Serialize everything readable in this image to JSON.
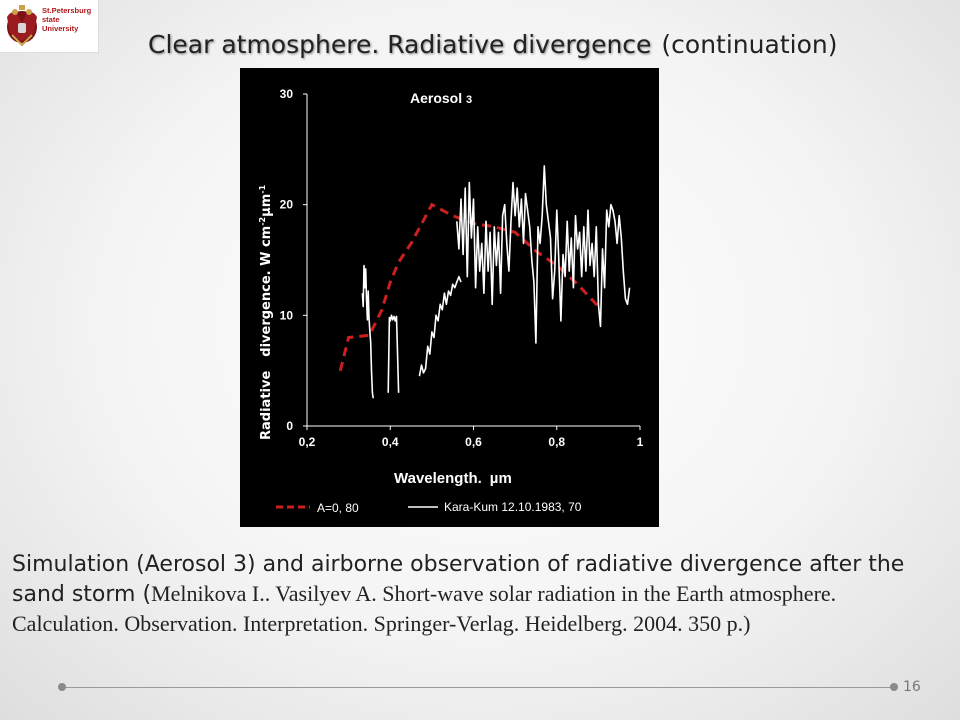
{
  "logo": {
    "line1": "St.Petersburg",
    "line2": "state",
    "line3": "University",
    "icon": "double-headed-eagle-emblem"
  },
  "slide": {
    "title": "Clear atmosphere. Radiative divergence",
    "title_cont": "(continuation)",
    "caption_sans": "Simulation (Aerosol 3) and airborne observation of radiative divergence after the sand storm (",
    "caption_serif": "Melnikova I.. Vasilyev A. Short-wave solar radiation in the Earth atmosphere. Calculation. Observation. Interpretation. Springer-Verlag. Heidelberg. 2004. 350 p.)",
    "page_number": "16"
  },
  "chart_data": {
    "type": "line",
    "title": "Aerosol",
    "title_sub": "3",
    "xlabel": "Wavelength.",
    "xlabel_unit": "µm",
    "ylabel_part1": "Radiative",
    "ylabel_part2": "divergence. W cm",
    "ylabel_exp1": "-2",
    "ylabel_unit": "µm",
    "ylabel_exp2": "-1",
    "xlim": [
      0.2,
      1.0
    ],
    "ylim": [
      0,
      30
    ],
    "x_ticks": [
      0.2,
      0.4,
      0.6,
      0.8,
      1.0
    ],
    "x_tick_labels": [
      "0,2",
      "0,4",
      "0,6",
      "0,8",
      "1"
    ],
    "y_ticks": [
      0,
      10,
      20,
      30
    ],
    "y_tick_labels": [
      "0",
      "10",
      "20",
      "30"
    ],
    "grid": false,
    "background": "#000000",
    "legend_position": "bottom",
    "series": [
      {
        "name": "A=0, 80",
        "style": "dashed",
        "color": "#cc1f1f",
        "x": [
          0.28,
          0.3,
          0.35,
          0.38,
          0.4,
          0.42,
          0.45,
          0.5,
          0.55,
          0.6,
          0.65,
          0.7,
          0.75,
          0.8,
          0.85,
          0.9
        ],
        "y": [
          5.0,
          8.0,
          8.2,
          10.5,
          13.0,
          14.8,
          16.5,
          20.0,
          19.0,
          18.3,
          18.0,
          17.5,
          15.8,
          14.5,
          12.8,
          10.8
        ]
      },
      {
        "name": "Kara-Kum 12.10.1983, 70",
        "style": "solid",
        "color": "#ffffff",
        "segments": [
          {
            "x": [
              0.333,
              0.335,
              0.337,
              0.339,
              0.341,
              0.343,
              0.345,
              0.347,
              0.349,
              0.351,
              0.353,
              0.355,
              0.357,
              0.359
            ],
            "y": [
              12.0,
              10.8,
              14.5,
              12.5,
              14.2,
              11.5,
              9.6,
              12.2,
              9.8,
              8.5,
              7.5,
              5.0,
              3.0,
              2.5
            ]
          },
          {
            "x": [
              0.395,
              0.398,
              0.4,
              0.403,
              0.406,
              0.409,
              0.412,
              0.415,
              0.418,
              0.42
            ],
            "y": [
              3.0,
              9.8,
              9.5,
              10.0,
              9.6,
              9.9,
              9.5,
              9.9,
              6.0,
              3.0
            ]
          },
          {
            "x": [
              0.47,
              0.475,
              0.48,
              0.485,
              0.49,
              0.495,
              0.5,
              0.505,
              0.51,
              0.515,
              0.52,
              0.525,
              0.53,
              0.535,
              0.54,
              0.545,
              0.55,
              0.555,
              0.56,
              0.565,
              0.57
            ],
            "y": [
              4.5,
              5.5,
              4.8,
              5.2,
              7.2,
              6.5,
              8.5,
              8.0,
              10.0,
              9.5,
              11.0,
              10.5,
              12.0,
              11.0,
              12.2,
              11.8,
              12.8,
              12.5,
              13.0,
              13.5,
              13.0
            ]
          },
          {
            "x": [
              0.56,
              0.565,
              0.57,
              0.575,
              0.58,
              0.585,
              0.59,
              0.595,
              0.6,
              0.605,
              0.61,
              0.615,
              0.62,
              0.625,
              0.63,
              0.635,
              0.64,
              0.645,
              0.65,
              0.655,
              0.66,
              0.665,
              0.67,
              0.675,
              0.68,
              0.685,
              0.69,
              0.695,
              0.7,
              0.705,
              0.71,
              0.715,
              0.72,
              0.725,
              0.73,
              0.735,
              0.74,
              0.745,
              0.75,
              0.755,
              0.76,
              0.765,
              0.77,
              0.775,
              0.78,
              0.785,
              0.79,
              0.795,
              0.8,
              0.805,
              0.81,
              0.815,
              0.82,
              0.825,
              0.83,
              0.835,
              0.84,
              0.845,
              0.85,
              0.855,
              0.86,
              0.865,
              0.87,
              0.875,
              0.88,
              0.885,
              0.89,
              0.895,
              0.9,
              0.905,
              0.91,
              0.915,
              0.92,
              0.925,
              0.93,
              0.935,
              0.94,
              0.945,
              0.95,
              0.955,
              0.96,
              0.965,
              0.97,
              0.975
            ],
            "y": [
              18.5,
              16.0,
              20.5,
              15.5,
              21.5,
              13.5,
              22.0,
              17.0,
              20.5,
              12.5,
              18.0,
              14.0,
              16.5,
              12.0,
              18.5,
              14.0,
              17.5,
              11.0,
              18.0,
              14.5,
              17.5,
              12.0,
              19.0,
              20.0,
              16.5,
              14.0,
              18.5,
              22.0,
              19.0,
              21.5,
              18.0,
              20.5,
              16.5,
              21.0,
              19.5,
              18.0,
              15.0,
              13.0,
              7.5,
              18.0,
              16.5,
              19.0,
              23.5,
              20.0,
              18.5,
              17.0,
              11.5,
              14.0,
              19.5,
              15.0,
              9.5,
              15.5,
              13.5,
              18.5,
              14.0,
              17.0,
              12.5,
              19.0,
              16.0,
              17.5,
              13.5,
              18.0,
              14.0,
              19.5,
              14.5,
              16.5,
              13.5,
              18.0,
              11.0,
              9.0,
              16.0,
              12.5,
              19.5,
              18.0,
              20.0,
              19.5,
              18.5,
              16.5,
              19.0,
              17.0,
              14.0,
              11.5,
              11.0,
              12.5
            ]
          }
        ]
      }
    ]
  }
}
